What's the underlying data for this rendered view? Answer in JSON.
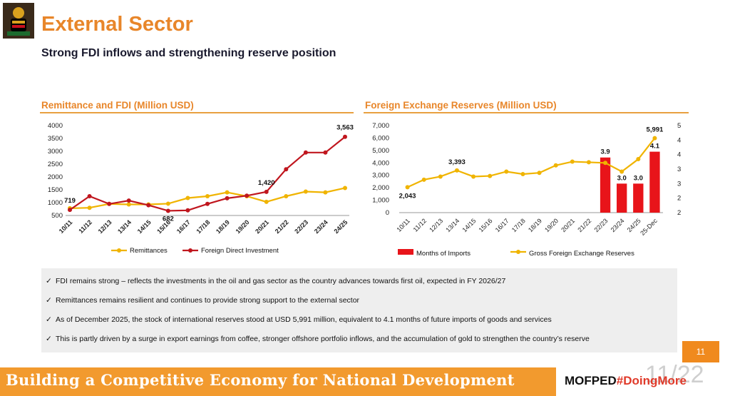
{
  "page": {
    "title": "External Sector",
    "subtitle": "Strong FDI inflows and strengthening reserve position",
    "page_number": "11",
    "page_ghost": "11/22",
    "footer": "Building a Competitive Economy for National Development",
    "brand_prefix": "MOFPED",
    "brand_hashtag": "#DoingMore"
  },
  "notes": [
    "FDI remains strong – reflects the investments in the oil and gas sector as the country advances towards first oil, expected in FY 2026/27",
    "Remittances remains resilient and continues to provide strong support to the external sector",
    "As of December 2025, the stock of international reserves stood at USD 5,991 million, equivalent to 4.1 months of future imports of goods and services",
    "This is partly driven by a surge in export earnings from coffee, stronger offshore portfolio inflows, and the accumulation of gold to strengthen the country’s reserve"
  ],
  "check_glyph": "✓",
  "colors": {
    "orange": "#e8862a",
    "gold": "#f0b400",
    "red": "#c0161e",
    "bar_red": "#e8141a"
  },
  "chart_data": [
    {
      "type": "line",
      "title": "Remittance and FDI (Million USD)",
      "categories": [
        "10/11",
        "11/12",
        "12/13",
        "13/14",
        "14/15",
        "15/16",
        "16/17",
        "17/18",
        "18/19",
        "19/20",
        "20/21",
        "21/22",
        "22/23",
        "23/24",
        "24/25"
      ],
      "ylim": [
        500,
        4000
      ],
      "yticks": [
        500,
        1000,
        1500,
        2000,
        2500,
        3000,
        3500,
        4000
      ],
      "grid": false,
      "legend": "bottom",
      "series": [
        {
          "name": "Remittances",
          "color": "#f0b400",
          "values": [
            780,
            800,
            950,
            930,
            930,
            960,
            1180,
            1250,
            1400,
            1250,
            1030,
            1250,
            1430,
            1400,
            1570
          ]
        },
        {
          "name": "Foreign Direct Investment",
          "color": "#c0161e",
          "values": [
            719,
            1250,
            950,
            1080,
            900,
            682,
            700,
            950,
            1170,
            1270,
            1420,
            2300,
            2950,
            2950,
            3563
          ]
        }
      ],
      "annotations": [
        {
          "series": 1,
          "index": 0,
          "label": "719"
        },
        {
          "series": 1,
          "index": 5,
          "label": "682"
        },
        {
          "series": 1,
          "index": 10,
          "label": "1,420"
        },
        {
          "series": 1,
          "index": 14,
          "label": "3,563"
        }
      ]
    },
    {
      "type": "bar+line",
      "title": "Foreign Exchange Reserves (Million USD)",
      "categories": [
        "10/11",
        "11/12",
        "12/13",
        "13/14",
        "14/15",
        "15/16",
        "16/17",
        "17/18",
        "18/19",
        "19/20",
        "20/21",
        "21/22",
        "22/23",
        "23/24",
        "24/25",
        "25-Dec"
      ],
      "ylim_left": [
        0,
        7000
      ],
      "yticks_left": [
        0,
        1000,
        2000,
        3000,
        4000,
        5000,
        6000,
        7000
      ],
      "ylim_right": [
        2,
        5
      ],
      "yticks_right": [
        2,
        2.5,
        3,
        3.5,
        4,
        4.5,
        5
      ],
      "ytick_labels_right": [
        "2",
        "2",
        "3",
        "3",
        "4",
        "4",
        "5"
      ],
      "grid": false,
      "legend": "bottom",
      "bars": {
        "name": "Months of Imports",
        "color": "#e8141a",
        "axis": "right",
        "values": [
          null,
          null,
          null,
          null,
          null,
          null,
          null,
          null,
          null,
          null,
          null,
          null,
          3.9,
          3.0,
          3.0,
          4.1
        ],
        "labels": [
          "",
          "",
          "",
          "",
          "",
          "",
          "",
          "",
          "",
          "",
          "",
          "",
          "3.9",
          "3.0",
          "3.0",
          "4.1"
        ]
      },
      "line": {
        "name": "Gross Foreign Exchange Reserves",
        "color": "#f0b400",
        "axis": "left",
        "values": [
          2043,
          2650,
          2900,
          3393,
          2900,
          2950,
          3300,
          3100,
          3200,
          3800,
          4100,
          4050,
          4000,
          3300,
          4300,
          5991
        ]
      },
      "annotations": [
        {
          "index": 0,
          "label": "2,043"
        },
        {
          "index": 3,
          "label": "3,393"
        },
        {
          "index": 15,
          "label": "5,991"
        }
      ]
    }
  ]
}
